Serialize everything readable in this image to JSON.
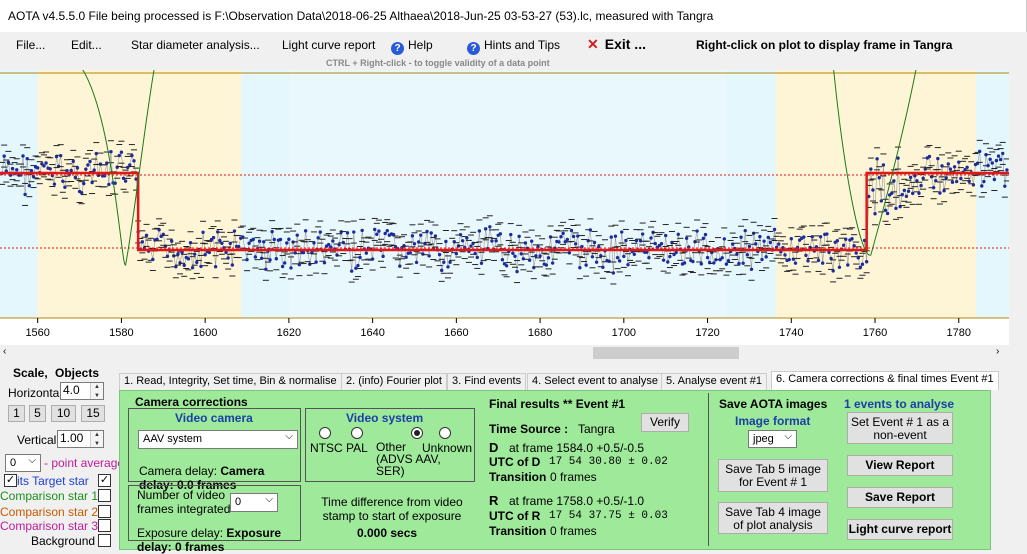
{
  "window_title": "AOTA v4.5.5.0    File being processed is F:\\Observation Data\\2018-06-25 Althaea\\2018-Jun-25 03-53-27 (53).lc, measured with Tangra",
  "menu": {
    "file": "File...",
    "edit": "Edit...",
    "star_diameter": "Star diameter analysis...",
    "light_curve_report": "Light curve report",
    "help": "Help",
    "hints": "Hints and Tips",
    "exit": "Exit ...",
    "right_click_note": "Right-click on plot to display frame in Tangra"
  },
  "hint": "CTRL + Right-click  -  to toggle validity of a data point",
  "chart_data": {
    "type": "scatter",
    "x_ticks": [
      "1560",
      "1580",
      "1600",
      "1620",
      "1640",
      "1660",
      "1680",
      "1700",
      "1720",
      "1740",
      "1760",
      "1780"
    ],
    "x_range": [
      1551,
      1792
    ],
    "y_range": [
      0,
      277
    ],
    "events": [
      {
        "D_frame": 1584.0,
        "R_frame": 1758.0
      }
    ],
    "model": {
      "baseline_level": "high",
      "event_level": "low",
      "D": 1584,
      "R": 1758
    }
  },
  "left_panel": {
    "scale": "Scale,",
    "objects": "Objects",
    "horizontal_label": "Horizontal",
    "horizontal_value": "4.0",
    "scale_buttons": [
      "1",
      "5",
      "10",
      "15"
    ],
    "vertical_label": "Vertical",
    "vertical_value": "1.00",
    "point_average_value": "0",
    "point_average_label": "- point average",
    "target_star": "its  Target star",
    "comparison_1": "Comparison star 1",
    "comparison_2": "Comparison star 2",
    "comparison_3": "Comparison star 3",
    "background": "Background",
    "colors": {
      "target": "#1f3fd1",
      "comp1": "#1b8f1b",
      "comp2": "#c85a00",
      "comp3": "#c01b9c",
      "point_average": "#c01b9c"
    }
  },
  "tabs": [
    "1. Read, Integrity, Set time, Bin & normalise",
    "2. (info)  Fourier plot",
    "3. Find events",
    "4. Select event to analyse",
    "5. Analyse event #1",
    "6. Camera corrections & final times Event #1"
  ],
  "camera": {
    "header": "Camera corrections",
    "video_camera": "Video camera",
    "camera_value": "AAV system",
    "camera_delay": "Camera delay: 0.0 frames",
    "video_system": "Video system",
    "ntsc": "NTSC",
    "pal": "PAL",
    "other": "Other (ADVS AAV, SER)",
    "unknown": "Unknown",
    "frames_integrated_label": "Number of video frames integrated",
    "frames_integrated_value": "0",
    "exposure_delay": "Exposure delay: 0 frames",
    "time_diff_label": "Time difference from video stamp to start of exposure",
    "time_diff_value": "0.000 secs"
  },
  "final": {
    "header": "Final results  **  Event #1",
    "verify": "Verify",
    "time_source_label": "Time Source :",
    "time_source_value": "Tangra",
    "d_label": "D",
    "d_frame": "at frame 1584.0  +0.5/-0.5",
    "utc_d_label": "UTC of D",
    "utc_d_value": "17 54 30.80  ± 0.02",
    "transition_label": "Transition",
    "transition_d": "0 frames",
    "r_label": "R",
    "r_frame": "at frame 1758.0  +0.5/-1.0",
    "utc_r_label": "UTC of R",
    "utc_r_value": "17 54 37.75  ± 0.03",
    "transition_r": "0 frames"
  },
  "save": {
    "header": "Save AOTA images",
    "image_format": "Image format",
    "format_value": "jpeg",
    "tab5_button": "Save Tab 5 image for Event # 1",
    "tab4_button": "Save Tab 4 image of plot analysis"
  },
  "events_panel": {
    "title": "1  events to analyse",
    "non_event": "Set Event # 1 as a non-event",
    "view_report": "View Report",
    "save_report": "Save Report",
    "light_curve_report": "Light curve report"
  }
}
